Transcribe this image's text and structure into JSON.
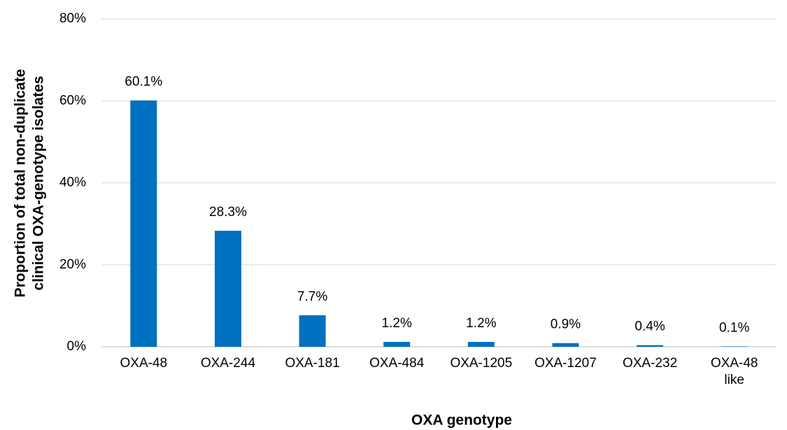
{
  "chart_data": {
    "type": "bar",
    "xlabel": "OXA genotype",
    "ylabel": [
      "Proportion of total non-duplicate",
      "clinical OXA-genotype isolates"
    ],
    "categories": [
      "OXA-48",
      "OXA-244",
      "OXA-181",
      "OXA-484",
      "OXA-1205",
      "OXA-1207",
      "OXA-232",
      "OXA-48 like"
    ],
    "values": [
      60.1,
      28.3,
      7.7,
      1.2,
      1.2,
      0.9,
      0.4,
      0.1
    ],
    "value_labels": [
      "60.1%",
      "28.3%",
      "7.7%",
      "1.2%",
      "1.2%",
      "0.9%",
      "0.4%",
      "0.1%"
    ],
    "color": "#0070c0",
    "ylim": [
      0,
      80
    ],
    "yticks": [
      {
        "value": 0,
        "label": "0%"
      },
      {
        "value": 20,
        "label": "20%"
      },
      {
        "value": 40,
        "label": "40%"
      },
      {
        "value": 60,
        "label": "60%"
      },
      {
        "value": 80,
        "label": "80%"
      }
    ],
    "grid": true
  }
}
